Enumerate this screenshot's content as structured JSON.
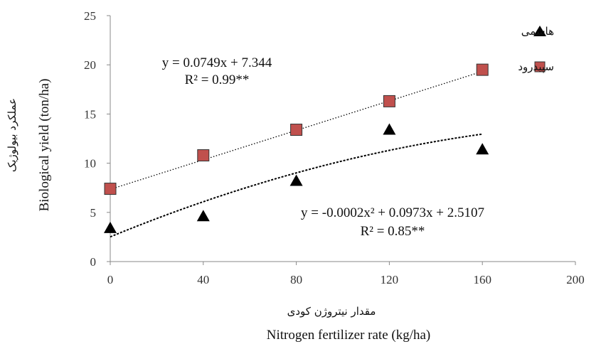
{
  "chart_data": {
    "type": "scatter",
    "x_label_en": "Nitrogen fertilizer rate (kg/ha)",
    "x_label_fa": "مقدار نیتروژن کودی",
    "y_label_en": "Biological  yield  (ton/ha)",
    "y_label_fa": "عملکرد بیولوژیک",
    "xlim": [
      0,
      200
    ],
    "ylim": [
      0,
      25
    ],
    "x_ticks": [
      "0",
      "40",
      "80",
      "120",
      "160",
      "200"
    ],
    "y_ticks": [
      "0",
      "5",
      "10",
      "15",
      "20",
      "25"
    ],
    "grid": false,
    "legend_position": "top-right",
    "series": [
      {
        "name": "هاشمی",
        "marker": "triangle",
        "color": "#000000",
        "x": [
          0,
          40,
          80,
          120,
          160
        ],
        "y": [
          3.4,
          4.6,
          8.2,
          13.4,
          11.4
        ],
        "trendline": {
          "type": "polynomial",
          "coefficients": [
            2.5107,
            0.0973,
            -0.0002
          ],
          "style": "dashed",
          "equation": "y = -0.0002x² + 0.0973x + 2.5107",
          "r2": "R² = 0.85**"
        }
      },
      {
        "name": "سپیدرود",
        "marker": "square",
        "color": "#c0504d",
        "x": [
          0,
          40,
          80,
          120,
          160
        ],
        "y": [
          7.4,
          10.8,
          13.4,
          16.3,
          19.5
        ],
        "trendline": {
          "type": "linear",
          "coefficients": [
            7.344,
            0.0749
          ],
          "style": "dotted",
          "equation": "y = 0.0749x + 7.344",
          "r2": "R² = 0.99**"
        }
      }
    ]
  }
}
